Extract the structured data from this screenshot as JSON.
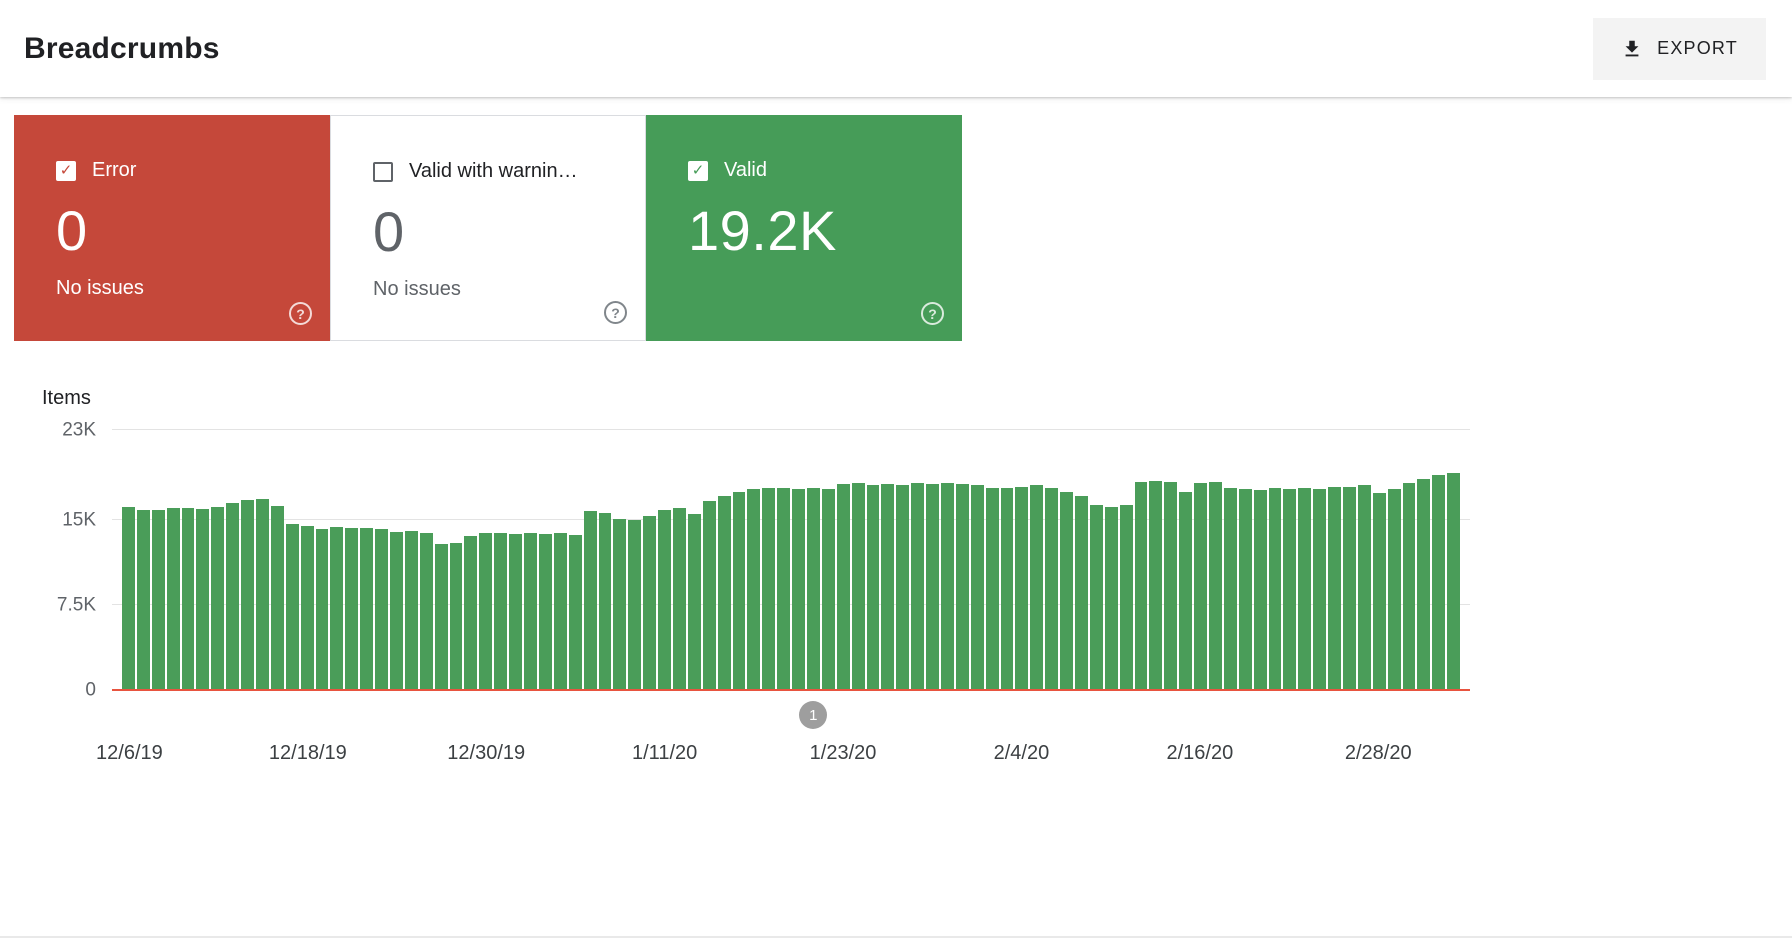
{
  "header": {
    "title": "Breadcrumbs",
    "export_label": "EXPORT"
  },
  "icons": {
    "check": "✓",
    "help": "?"
  },
  "cards": [
    {
      "label": "Error",
      "value": "0",
      "sub": "No issues",
      "checked": true
    },
    {
      "label": "Valid with warnin…",
      "value": "0",
      "sub": "No issues",
      "checked": false
    },
    {
      "label": "Valid",
      "value": "19.2K",
      "checked": true
    }
  ],
  "colors": {
    "error_red": "#c5483a",
    "valid_green": "#469c58",
    "bar_green": "#4a9d59",
    "baseline_red": "#e8543f",
    "marker_gray": "#9e9e9e"
  },
  "chart_data": {
    "type": "bar",
    "title": "Items",
    "xlabel": "",
    "ylabel": "Items",
    "ylim": [
      0,
      23000
    ],
    "grid": true,
    "legend_position": "none",
    "yticks": [
      {
        "label": "23K",
        "value": 23000
      },
      {
        "label": "15K",
        "value": 15000
      },
      {
        "label": "7.5K",
        "value": 7500
      },
      {
        "label": "0",
        "value": 0
      }
    ],
    "x_ticks": [
      {
        "label": "12/6/19",
        "index": 0
      },
      {
        "label": "12/18/19",
        "index": 12
      },
      {
        "label": "12/30/19",
        "index": 24
      },
      {
        "label": "1/11/20",
        "index": 36
      },
      {
        "label": "1/23/20",
        "index": 48
      },
      {
        "label": "2/4/20",
        "index": 60
      },
      {
        "label": "2/16/20",
        "index": 72
      },
      {
        "label": "2/28/20",
        "index": 84
      }
    ],
    "series": [
      {
        "name": "Valid",
        "color": "#4a9d59",
        "values": [
          16200,
          15900,
          15900,
          16100,
          16100,
          16000,
          16200,
          16500,
          16800,
          16900,
          16300,
          14700,
          14500,
          14200,
          14400,
          14300,
          14300,
          14200,
          14000,
          14100,
          13900,
          12900,
          13000,
          13600,
          13900,
          13900,
          13800,
          13900,
          13800,
          13900,
          13700,
          15800,
          15700,
          15100,
          15000,
          15400,
          15900,
          16100,
          15600,
          16700,
          17200,
          17500,
          17800,
          17900,
          17900,
          17800,
          17900,
          17800,
          18200,
          18300,
          18100,
          18200,
          18100,
          18300,
          18200,
          18300,
          18200,
          18100,
          17900,
          17900,
          18000,
          18100,
          17900,
          17500,
          17200,
          16400,
          16200,
          16400,
          18400,
          18500,
          18400,
          17500,
          18300,
          18400,
          17900,
          17800,
          17700,
          17900,
          17800,
          17900,
          17800,
          18000,
          18000,
          18100,
          17400,
          17800,
          18300,
          18700,
          19000,
          19200
        ]
      }
    ],
    "marker": {
      "label": "1",
      "index": 46
    }
  }
}
